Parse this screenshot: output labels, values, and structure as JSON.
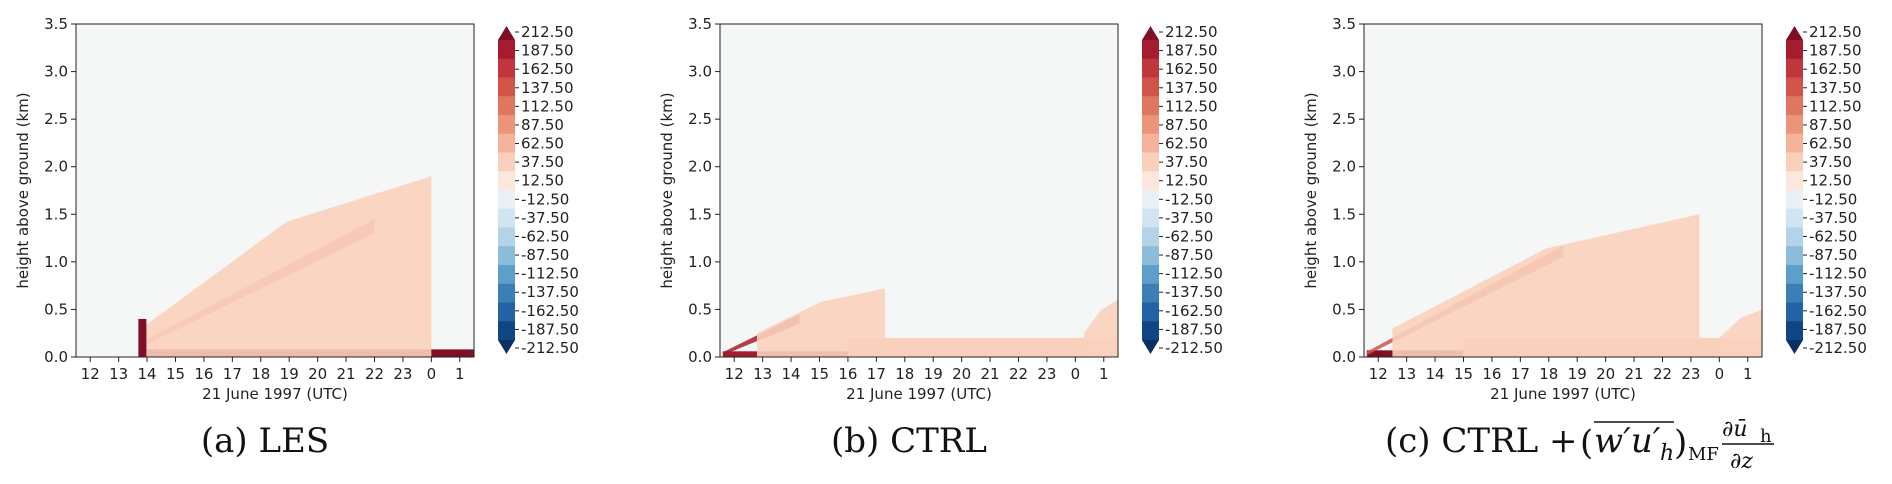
{
  "chart_data": [
    {
      "type": "heatmap",
      "id": "les",
      "caption": "(a) LES",
      "xlabel": "21 June 1997 (UTC)",
      "ylabel": "height above ground (km)",
      "x_ticks": [
        "12",
        "13",
        "14",
        "15",
        "16",
        "17",
        "18",
        "19",
        "20",
        "21",
        "22",
        "23",
        "0",
        "1"
      ],
      "y_ticks": [
        "0.0",
        "0.5",
        "1.0",
        "1.5",
        "2.0",
        "2.5",
        "3.0",
        "3.5"
      ],
      "xlim_hours": [
        11.5,
        25.5
      ],
      "ylim": [
        0,
        3.5
      ],
      "features": [
        {
          "kind": "surface-layer",
          "start": 13.75,
          "end": 25.5,
          "top": 0.08,
          "value": 212.5
        },
        {
          "kind": "growth-band",
          "start": 13.75,
          "end": 22.0,
          "base_start": 0.1,
          "base_end": 1.3,
          "width": 0.15,
          "value": 112.5
        },
        {
          "kind": "diffuse-region",
          "start": 13.8,
          "end": 24.0,
          "top_start": 0.3,
          "top_end": 1.9,
          "value": 37.5
        },
        {
          "kind": "onset-spike",
          "hour": 13.8,
          "top": 0.4,
          "value": 212.5
        }
      ]
    },
    {
      "type": "heatmap",
      "id": "ctrl",
      "caption": "(b) CTRL",
      "xlabel": "21 June 1997 (UTC)",
      "ylabel": "height above ground (km)",
      "x_ticks": [
        "12",
        "13",
        "14",
        "15",
        "16",
        "17",
        "18",
        "19",
        "20",
        "21",
        "22",
        "23",
        "0",
        "1"
      ],
      "y_ticks": [
        "0.0",
        "0.5",
        "1.0",
        "1.5",
        "2.0",
        "2.5",
        "3.0",
        "3.5"
      ],
      "xlim_hours": [
        11.5,
        25.5
      ],
      "ylim": [
        0,
        3.5
      ],
      "features": [
        {
          "kind": "surface-layer",
          "start": 11.6,
          "end": 25.5,
          "top": 0.06,
          "value": 187.5
        },
        {
          "kind": "growth-band",
          "start": 11.6,
          "end": 14.3,
          "base_start": 0.02,
          "base_end": 0.35,
          "width": 0.1,
          "value": 187.5
        },
        {
          "kind": "diffuse-region",
          "start": 12.8,
          "end": 17.3,
          "top_start": 0.25,
          "top_end": 0.72,
          "value": 37.5
        },
        {
          "kind": "residual-layer",
          "start": 16.0,
          "end": 25.5,
          "top": 0.2,
          "value": 37.5
        },
        {
          "kind": "rising-tail",
          "start": 24.3,
          "end": 25.5,
          "top_start": 0.25,
          "top_end": 0.6,
          "value": 37.5
        }
      ]
    },
    {
      "type": "heatmap",
      "id": "ctrl_mf",
      "caption": "(c) CTRL + (w′u′h)MF ∂ūh/∂z",
      "xlabel": "21 June 1997 (UTC)",
      "ylabel": "height above ground (km)",
      "x_ticks": [
        "12",
        "13",
        "14",
        "15",
        "16",
        "17",
        "18",
        "19",
        "20",
        "21",
        "22",
        "23",
        "0",
        "1"
      ],
      "y_ticks": [
        "0.0",
        "0.5",
        "1.0",
        "1.5",
        "2.0",
        "2.5",
        "3.0",
        "3.5"
      ],
      "xlim_hours": [
        11.5,
        25.5
      ],
      "ylim": [
        0,
        3.5
      ],
      "features": [
        {
          "kind": "surface-layer",
          "start": 11.6,
          "end": 25.5,
          "top": 0.07,
          "value": 212.5
        },
        {
          "kind": "growth-band",
          "start": 11.6,
          "end": 18.5,
          "base_start": 0.02,
          "base_end": 1.05,
          "width": 0.12,
          "value": 137.5
        },
        {
          "kind": "diffuse-region",
          "start": 12.5,
          "end": 23.3,
          "top_start": 0.3,
          "top_end": 1.5,
          "value": 37.5
        },
        {
          "kind": "residual-layer",
          "start": 15.0,
          "end": 25.5,
          "top": 0.2,
          "value": 37.5
        },
        {
          "kind": "rising-tail",
          "start": 24.0,
          "end": 25.5,
          "top_start": 0.2,
          "top_end": 0.5,
          "value": 37.5
        }
      ]
    }
  ],
  "colorbar": {
    "levels": [
      "212.50",
      "187.50",
      "162.50",
      "137.50",
      "112.50",
      "87.50",
      "62.50",
      "37.50",
      "12.50",
      "-12.50",
      "-37.50",
      "-62.50",
      "-87.50",
      "-112.50",
      "-137.50",
      "-162.50",
      "-187.50",
      "-212.50"
    ],
    "colors": [
      "#800f26",
      "#a51c30",
      "#c0363c",
      "#d05548",
      "#df7660",
      "#eb9479",
      "#f4b39a",
      "#f9d0bc",
      "#fbe7dc",
      "#e9f1f6",
      "#d1e5f0",
      "#b3d4e8",
      "#8bbdda",
      "#5e9fca",
      "#3b7fb6",
      "#2362a4",
      "#104585",
      "#0b2f63"
    ],
    "background": "#f5f7f6"
  },
  "caption_c": {
    "prefix": "(c) CTRL + ",
    "flux": "w′u′",
    "flux_sub": "h",
    "flux_after": "MF",
    "deriv_num": "∂ū",
    "deriv_num_sub": "h",
    "deriv_den": "∂z"
  }
}
